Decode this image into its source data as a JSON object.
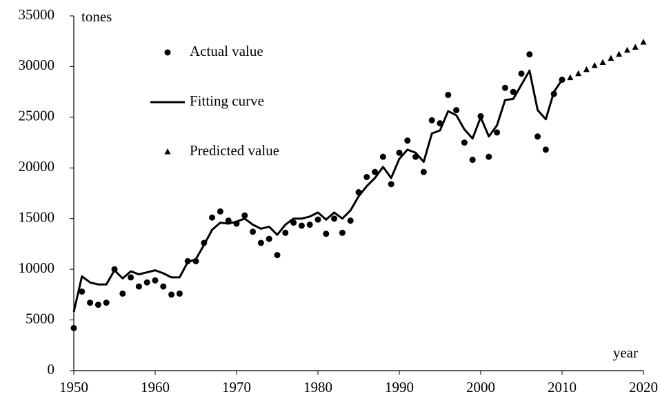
{
  "chart_data": {
    "type": "line",
    "ylabel": "tones",
    "xlabel": "year",
    "xlim": [
      1950,
      2020
    ],
    "ylim": [
      0,
      35000
    ],
    "xticks": [
      1950,
      1960,
      1970,
      1980,
      1990,
      2000,
      2010,
      2020
    ],
    "yticks": [
      0,
      5000,
      10000,
      15000,
      20000,
      25000,
      30000,
      35000
    ],
    "grid": false,
    "legend": "upper left",
    "series": [
      {
        "name": "Actual value",
        "kind": "scatter",
        "marker": "circle",
        "color": "#000000",
        "x": [
          1950,
          1951,
          1952,
          1953,
          1954,
          1955,
          1956,
          1957,
          1958,
          1959,
          1960,
          1961,
          1962,
          1963,
          1964,
          1965,
          1966,
          1967,
          1968,
          1969,
          1970,
          1971,
          1972,
          1973,
          1974,
          1975,
          1976,
          1977,
          1978,
          1979,
          1980,
          1981,
          1982,
          1983,
          1984,
          1985,
          1986,
          1987,
          1988,
          1989,
          1990,
          1991,
          1992,
          1993,
          1994,
          1995,
          1996,
          1997,
          1998,
          1999,
          2000,
          2001,
          2002,
          2003,
          2004,
          2005,
          2006,
          2007,
          2008,
          2009,
          2010
        ],
        "values": [
          4200,
          7800,
          6700,
          6500,
          6700,
          10000,
          7600,
          9200,
          8300,
          8700,
          8900,
          8300,
          7500,
          7600,
          10800,
          10800,
          12600,
          15100,
          15700,
          14800,
          14500,
          15300,
          13700,
          12600,
          13000,
          11400,
          13600,
          14600,
          14300,
          14400,
          14900,
          13500,
          15000,
          13600,
          14800,
          17600,
          19100,
          19600,
          21100,
          18400,
          21500,
          22700,
          21100,
          19600,
          24700,
          24400,
          27200,
          25700,
          22500,
          20800,
          25100,
          21100,
          23500,
          27900,
          27500,
          29300,
          31200,
          23100,
          21800,
          27300,
          28700
        ]
      },
      {
        "name": "Fitting curve",
        "kind": "line",
        "color": "#000000",
        "x": [
          1950,
          1951,
          1952,
          1953,
          1954,
          1955,
          1956,
          1957,
          1958,
          1959,
          1960,
          1961,
          1962,
          1963,
          1964,
          1965,
          1966,
          1967,
          1968,
          1969,
          1970,
          1971,
          1972,
          1973,
          1974,
          1975,
          1976,
          1977,
          1978,
          1979,
          1980,
          1981,
          1982,
          1983,
          1984,
          1985,
          1986,
          1987,
          1988,
          1989,
          1990,
          1991,
          1992,
          1993,
          1994,
          1995,
          1996,
          1997,
          1998,
          1999,
          2000,
          2001,
          2002,
          2003,
          2004,
          2005,
          2006,
          2007,
          2008,
          2009,
          2010
        ],
        "values": [
          5800,
          9300,
          8700,
          8500,
          8500,
          9900,
          9100,
          9800,
          9500,
          9700,
          9900,
          9600,
          9200,
          9200,
          10700,
          11000,
          12400,
          13900,
          14600,
          14500,
          14700,
          15000,
          14400,
          14000,
          14200,
          13400,
          14400,
          15000,
          15000,
          15200,
          15600,
          14900,
          15600,
          15000,
          15800,
          17200,
          18200,
          19000,
          20100,
          19000,
          20900,
          21800,
          21500,
          20600,
          23400,
          23700,
          25600,
          25200,
          23800,
          22900,
          25000,
          23100,
          24200,
          26700,
          26800,
          28200,
          29600,
          25700,
          24800,
          27500,
          28700
        ]
      },
      {
        "name": "Predicted value",
        "kind": "scatter",
        "marker": "triangle",
        "color": "#000000",
        "x": [
          2011,
          2012,
          2013,
          2014,
          2015,
          2016,
          2017,
          2018,
          2019,
          2020
        ],
        "values": [
          28900,
          29300,
          29700,
          30100,
          30400,
          30800,
          31200,
          31600,
          31900,
          32400
        ]
      }
    ]
  }
}
